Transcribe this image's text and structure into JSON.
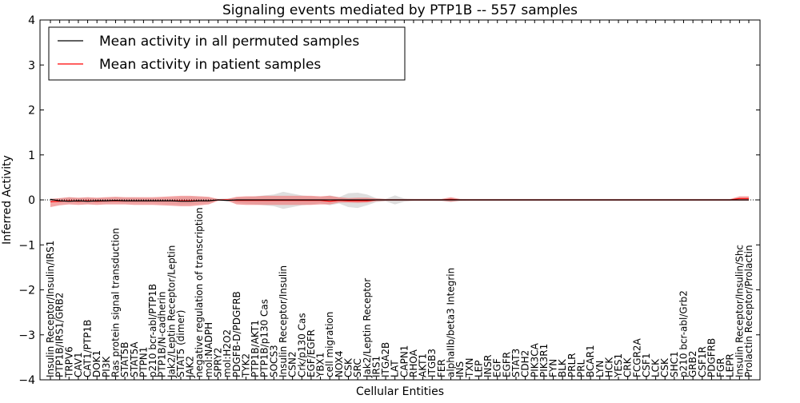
{
  "chart_data": {
    "type": "line",
    "title": "Signaling events mediated by PTP1B -- 557 samples",
    "xlabel": "Cellular Entities",
    "ylabel": "Inferred Activity",
    "ylim": [
      -4,
      4
    ],
    "yticks": [
      -4,
      -3,
      -2,
      -1,
      0,
      1,
      2,
      3,
      4
    ],
    "ytick_labels": [
      "−4",
      "−3",
      "−2",
      "−1",
      "0",
      "1",
      "2",
      "3",
      "4"
    ],
    "legend": {
      "position": "top-left",
      "entries": [
        {
          "label": "Mean activity in all permuted samples",
          "color": "#000000"
        },
        {
          "label": "Mean activity in patient samples",
          "color": "#ff0000"
        }
      ]
    },
    "categories": [
      "Insulin Receptor/Insulin/IRS1",
      "PTP1B/IRS1/GRB2",
      "TRPV6",
      "CAV1",
      "CAT1/PTP1B",
      "DOK1",
      "PI3K",
      "Ras protein signal transduction",
      "STAT5B",
      "STAT5A",
      "PTPN1",
      "p210 bcr-abl/PTP1B",
      "PTP1B/N-cadherin",
      "Jak2/Leptin Receptor/Leptin",
      "STAT5 (dimer)",
      "JAK2",
      "negative regulation of transcription",
      "mol:NADPH",
      "SPRY2",
      "mol:H2O2",
      "PDGFB-D/PDGFRB",
      "TYK2",
      "PTP1B/AKT1",
      "PTP1B/p130 Cas",
      "SOCS3",
      "Insulin Receptor/Insulin",
      "CSN2",
      "Crk/p130 Cas",
      "EGF/EGFR",
      "YBX1",
      "cell migration",
      "NOX4",
      "CSK",
      "SRC",
      "Jak2/Leptin Receptor",
      "IRS1",
      "ITGA2B",
      "LAT",
      "CAPN1",
      "RHOA",
      "AKT1",
      "ITGB3",
      "FER",
      "alphaIIb/beta3 Integrin",
      "INS",
      "TXN",
      "LEP",
      "INSR",
      "EGF",
      "EGFR",
      "STAT3",
      "CDH2",
      "PIK3CA",
      "PIK3R1",
      "FYN",
      "BLK",
      "PRLR",
      "PRL",
      "BCAR1",
      "LYN",
      "HCK",
      "YES1",
      "CRK",
      "FCGR2A",
      "CSF1",
      "LCK",
      "CSK",
      "SHC1",
      "p210 bcr-abl/Grb2",
      "GRB2",
      "CSF1R",
      "PDGFRB",
      "FGR",
      "LEPR",
      "Insulin Receptor/Insulin/Shc",
      "Prolactin Receptor/Prolactin"
    ],
    "series": [
      {
        "name": "Mean activity in all permuted samples",
        "color": "#000000",
        "values": [
          0.01,
          -0.02,
          -0.03,
          -0.02,
          -0.03,
          -0.02,
          -0.02,
          -0.01,
          -0.02,
          -0.02,
          -0.02,
          -0.02,
          -0.02,
          -0.02,
          -0.03,
          -0.03,
          -0.02,
          -0.02,
          0.0,
          -0.01,
          0.0,
          0.0,
          0.0,
          0.0,
          0.0,
          0.0,
          0.0,
          0.0,
          0.0,
          0.0,
          0.0,
          0.0,
          0.0,
          0.0,
          0.0,
          0.0,
          0.0,
          0.0,
          0.0,
          0.0,
          0.0,
          0.0,
          0.0,
          0.0,
          0.0,
          0.0,
          0.0,
          0.0,
          0.0,
          0.0,
          0.0,
          0.0,
          0.0,
          0.0,
          0.0,
          0.0,
          0.0,
          0.0,
          0.0,
          0.0,
          0.0,
          0.0,
          0.0,
          0.0,
          0.0,
          0.0,
          0.0,
          0.0,
          0.0,
          0.0,
          0.0,
          0.0,
          0.0,
          0.0,
          0.0,
          0.0
        ]
      },
      {
        "name": "Mean activity in patient samples",
        "color": "#ff0000",
        "values": [
          -0.04,
          -0.03,
          -0.02,
          -0.03,
          -0.02,
          -0.03,
          -0.02,
          -0.02,
          -0.02,
          -0.02,
          -0.02,
          -0.02,
          -0.02,
          -0.02,
          -0.02,
          -0.02,
          -0.02,
          -0.02,
          -0.0,
          -0.0,
          -0.01,
          -0.01,
          -0.01,
          -0.01,
          -0.01,
          -0.01,
          -0.01,
          -0.01,
          -0.01,
          -0.01,
          -0.03,
          -0.01,
          -0.02,
          -0.02,
          -0.02,
          0.0,
          0.0,
          0.0,
          0.0,
          0.0,
          0.0,
          0.0,
          0.0,
          0.01,
          0.0,
          0.0,
          0.0,
          0.0,
          0.0,
          0.0,
          0.0,
          0.0,
          0.0,
          0.0,
          0.0,
          0.0,
          0.0,
          0.0,
          0.0,
          0.0,
          0.0,
          0.0,
          0.0,
          0.0,
          0.0,
          0.0,
          0.0,
          0.0,
          0.0,
          0.0,
          0.0,
          0.0,
          0.0,
          0.0,
          0.03,
          0.03
        ]
      }
    ],
    "bands": [
      {
        "name": "permuted spread",
        "color": "#c8c8c8",
        "upper": [
          0.03,
          0.03,
          0.06,
          0.04,
          0.05,
          0.04,
          0.05,
          0.06,
          0.05,
          0.05,
          0.04,
          0.04,
          0.04,
          0.05,
          0.06,
          0.07,
          0.06,
          0.05,
          0.02,
          0.03,
          0.05,
          0.06,
          0.08,
          0.1,
          0.12,
          0.18,
          0.14,
          0.1,
          0.08,
          0.06,
          0.1,
          0.06,
          0.15,
          0.16,
          0.12,
          0.04,
          0.02,
          0.1,
          0.03,
          0.02,
          0.02,
          0.02,
          0.02,
          0.04,
          0.02,
          0.01,
          0.01,
          0.01,
          0.01,
          0.01,
          0.01,
          0.01,
          0.01,
          0.01,
          0.01,
          0.01,
          0.01,
          0.01,
          0.01,
          0.01,
          0.01,
          0.01,
          0.01,
          0.01,
          0.01,
          0.01,
          0.01,
          0.01,
          0.01,
          0.01,
          0.01,
          0.01,
          0.01,
          0.01,
          0.02,
          0.02
        ],
        "lower": [
          -0.03,
          -0.07,
          -0.07,
          -0.07,
          -0.08,
          -0.07,
          -0.07,
          -0.06,
          -0.07,
          -0.07,
          -0.07,
          -0.07,
          -0.08,
          -0.09,
          -0.1,
          -0.1,
          -0.08,
          -0.07,
          -0.02,
          -0.03,
          -0.06,
          -0.08,
          -0.1,
          -0.12,
          -0.14,
          -0.2,
          -0.16,
          -0.12,
          -0.1,
          -0.07,
          -0.12,
          -0.08,
          -0.16,
          -0.18,
          -0.12,
          -0.05,
          -0.03,
          -0.1,
          -0.04,
          -0.02,
          -0.02,
          -0.02,
          -0.02,
          -0.05,
          -0.02,
          -0.01,
          -0.01,
          -0.01,
          -0.01,
          -0.01,
          -0.01,
          -0.01,
          -0.01,
          -0.01,
          -0.01,
          -0.01,
          -0.01,
          -0.01,
          -0.01,
          -0.01,
          -0.01,
          -0.01,
          -0.01,
          -0.01,
          -0.01,
          -0.01,
          -0.01,
          -0.01,
          -0.01,
          -0.01,
          -0.01,
          -0.01,
          -0.01,
          -0.01,
          -0.02,
          -0.02
        ]
      },
      {
        "name": "patient spread",
        "color": "#f08080",
        "upper": [
          0.02,
          0.04,
          0.06,
          0.05,
          0.06,
          0.05,
          0.06,
          0.07,
          0.06,
          0.06,
          0.06,
          0.06,
          0.07,
          0.08,
          0.09,
          0.09,
          0.08,
          0.07,
          0.02,
          0.02,
          0.07,
          0.08,
          0.08,
          0.09,
          0.09,
          0.09,
          0.09,
          0.09,
          0.09,
          0.08,
          0.09,
          0.06,
          0.04,
          0.05,
          0.05,
          0.03,
          0.02,
          0.02,
          0.02,
          0.02,
          0.02,
          0.02,
          0.02,
          0.06,
          0.02,
          0.02,
          0.02,
          0.02,
          0.02,
          0.02,
          0.02,
          0.02,
          0.02,
          0.02,
          0.02,
          0.02,
          0.02,
          0.02,
          0.02,
          0.02,
          0.02,
          0.02,
          0.02,
          0.02,
          0.02,
          0.02,
          0.02,
          0.02,
          0.02,
          0.02,
          0.02,
          0.02,
          0.02,
          0.02,
          0.08,
          0.08
        ],
        "lower": [
          -0.16,
          -0.12,
          -0.1,
          -0.11,
          -0.1,
          -0.11,
          -0.1,
          -0.1,
          -0.1,
          -0.11,
          -0.11,
          -0.11,
          -0.12,
          -0.13,
          -0.14,
          -0.14,
          -0.12,
          -0.1,
          -0.02,
          -0.02,
          -0.1,
          -0.11,
          -0.11,
          -0.11,
          -0.11,
          -0.11,
          -0.11,
          -0.11,
          -0.11,
          -0.1,
          -0.1,
          -0.06,
          -0.06,
          -0.07,
          -0.06,
          -0.03,
          -0.02,
          -0.02,
          -0.02,
          -0.02,
          -0.02,
          -0.02,
          -0.02,
          -0.04,
          -0.02,
          -0.02,
          -0.02,
          -0.02,
          -0.02,
          -0.02,
          -0.02,
          -0.02,
          -0.02,
          -0.02,
          -0.02,
          -0.02,
          -0.02,
          -0.02,
          -0.02,
          -0.02,
          -0.02,
          -0.02,
          -0.02,
          -0.02,
          -0.02,
          -0.02,
          -0.02,
          -0.02,
          -0.02,
          -0.02,
          -0.02,
          -0.02,
          -0.02,
          -0.02,
          -0.02,
          -0.02
        ]
      }
    ]
  }
}
